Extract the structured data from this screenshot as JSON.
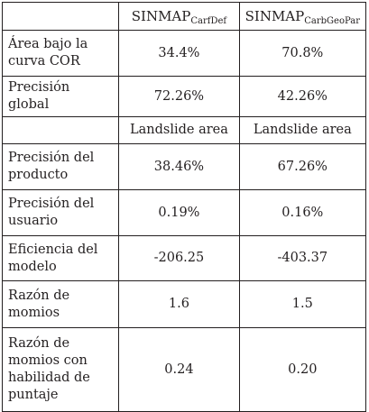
{
  "header": {
    "col1_main": "SINMAP",
    "col1_sub": "CarfDef",
    "col2_main": "SINMAP",
    "col2_sub": "CarbGeoPar"
  },
  "rows": [
    {
      "label": "Área bajo la curva COR",
      "v1": "34.4%",
      "v2": "70.8%"
    },
    {
      "label": "Precisión global",
      "v1": "72.26%",
      "v2": "42.26%"
    },
    {
      "label": "",
      "v1": "Landslide area",
      "v2": "Landslide area"
    },
    {
      "label": "Precisión del producto",
      "v1": "38.46%",
      "v2": "67.26%"
    },
    {
      "label": "Precisión del usuario",
      "v1": "0.19%",
      "v2": "0.16%"
    },
    {
      "label": "Eficiencia del modelo",
      "v1": "-206.25",
      "v2": "-403.37"
    },
    {
      "label": "Razón de momios",
      "v1": "1.6",
      "v2": "1.5"
    },
    {
      "label": "Razón de momios con habilidad de puntaje",
      "v1": "0.24",
      "v2": "0.20"
    }
  ]
}
